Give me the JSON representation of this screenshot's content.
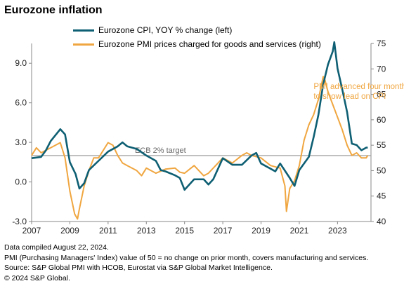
{
  "colors": {
    "cpi": "#0e5f73",
    "pmi": "#f0a640",
    "target_line": "#a6a6a6",
    "annotation": "#f0a640"
  },
  "chart_data": {
    "type": "line",
    "title": "Eurozone inflation",
    "x_ticks": [
      "2007",
      "2009",
      "2011",
      "2013",
      "2015",
      "2017",
      "2019",
      "2021",
      "2023"
    ],
    "x_range": [
      2007.0,
      2024.75
    ],
    "y_left": {
      "range": [
        -3.0,
        10.5
      ],
      "ticks": [
        "-3.0",
        "0.0",
        "3.0",
        "6.0",
        "9.0"
      ]
    },
    "y_right": {
      "range": [
        40,
        75
      ],
      "ticks": [
        "40",
        "45",
        "50",
        "55",
        "60",
        "65",
        "70",
        "75"
      ]
    },
    "grid": false,
    "legend_position": "top",
    "series": [
      {
        "name": "Eurozone CPI, YOY % change (left)",
        "axis": "left",
        "x": [
          2007.0,
          2007.5,
          2007.75,
          2008.0,
          2008.5,
          2008.75,
          2009.0,
          2009.3,
          2009.5,
          2009.75,
          2010.0,
          2010.5,
          2011.0,
          2011.5,
          2011.75,
          2012.0,
          2012.5,
          2013.0,
          2013.5,
          2013.75,
          2014.0,
          2014.5,
          2014.75,
          2015.0,
          2015.5,
          2016.0,
          2016.25,
          2016.5,
          2017.0,
          2017.5,
          2018.0,
          2018.5,
          2018.75,
          2019.0,
          2019.5,
          2019.75,
          2020.0,
          2020.5,
          2020.75,
          2021.0,
          2021.5,
          2021.75,
          2022.0,
          2022.25,
          2022.5,
          2022.75,
          2022.83,
          2023.0,
          2023.25,
          2023.5,
          2023.75,
          2024.0,
          2024.25,
          2024.5,
          2024.58
        ],
        "values": [
          1.8,
          1.9,
          2.4,
          3.1,
          4.0,
          3.6,
          1.5,
          0.6,
          -0.5,
          -0.1,
          0.9,
          1.6,
          2.3,
          2.7,
          3.0,
          2.7,
          2.5,
          2.0,
          1.6,
          0.9,
          0.8,
          0.5,
          0.3,
          -0.6,
          0.2,
          0.2,
          -0.2,
          0.2,
          1.8,
          1.3,
          1.3,
          2.0,
          2.2,
          1.4,
          1.0,
          0.8,
          1.4,
          0.3,
          -0.3,
          0.9,
          1.9,
          3.4,
          5.1,
          7.4,
          8.9,
          9.9,
          10.6,
          8.6,
          7.0,
          5.3,
          2.9,
          2.8,
          2.4,
          2.6,
          2.6
        ]
      },
      {
        "name": "Eurozone PMI prices charged for goods and services (right)",
        "axis": "right",
        "x": [
          2007.0,
          2007.25,
          2007.5,
          2007.75,
          2008.0,
          2008.5,
          2008.75,
          2009.0,
          2009.25,
          2009.4,
          2009.5,
          2009.75,
          2010.0,
          2010.25,
          2010.5,
          2011.0,
          2011.25,
          2011.5,
          2011.75,
          2012.0,
          2012.5,
          2012.75,
          2013.0,
          2013.5,
          2014.0,
          2014.5,
          2014.75,
          2015.0,
          2015.5,
          2016.0,
          2016.25,
          2016.5,
          2017.0,
          2017.5,
          2018.0,
          2018.25,
          2018.5,
          2019.0,
          2019.5,
          2020.0,
          2020.25,
          2020.33,
          2020.5,
          2020.75,
          2021.0,
          2021.25,
          2021.5,
          2021.75,
          2022.0,
          2022.25,
          2022.33,
          2022.5,
          2022.75,
          2023.0,
          2023.25,
          2023.5,
          2023.75,
          2024.0,
          2024.25,
          2024.5,
          2024.58
        ],
        "values": [
          53.0,
          54.5,
          53.5,
          54.0,
          54.5,
          55.5,
          52.5,
          46.0,
          41.5,
          40.5,
          42.5,
          47.0,
          50.0,
          52.5,
          52.5,
          55.5,
          55.0,
          53.0,
          51.5,
          51.0,
          50.0,
          49.0,
          50.5,
          49.5,
          50.3,
          50.5,
          49.7,
          49.5,
          51.0,
          49.0,
          49.5,
          50.5,
          52.5,
          51.5,
          53.0,
          53.5,
          53.0,
          52.5,
          51.0,
          50.5,
          47.0,
          42.0,
          46.5,
          48.0,
          51.0,
          56.0,
          59.0,
          61.0,
          64.0,
          68.5,
          68.0,
          65.5,
          63.0,
          60.5,
          58.0,
          55.0,
          53.0,
          53.5,
          52.5,
          52.5,
          53.0
        ]
      }
    ],
    "reference_line": {
      "axis": "left",
      "value": 2.0,
      "label": "ECB 2% target"
    },
    "annotation": "PMI advanced  four months\nto show lead on CPI"
  },
  "notes": [
    "Data compiled August 22, 2024.",
    "PMI (Purchasing Managers' Index) value of 50 = no change on prior month, covers manufacturing and services.",
    "Source: S&P Global PMI with HCOB, Eurostat via S&P Global Market Intelligence.",
    "© 2024 S&P Global."
  ]
}
